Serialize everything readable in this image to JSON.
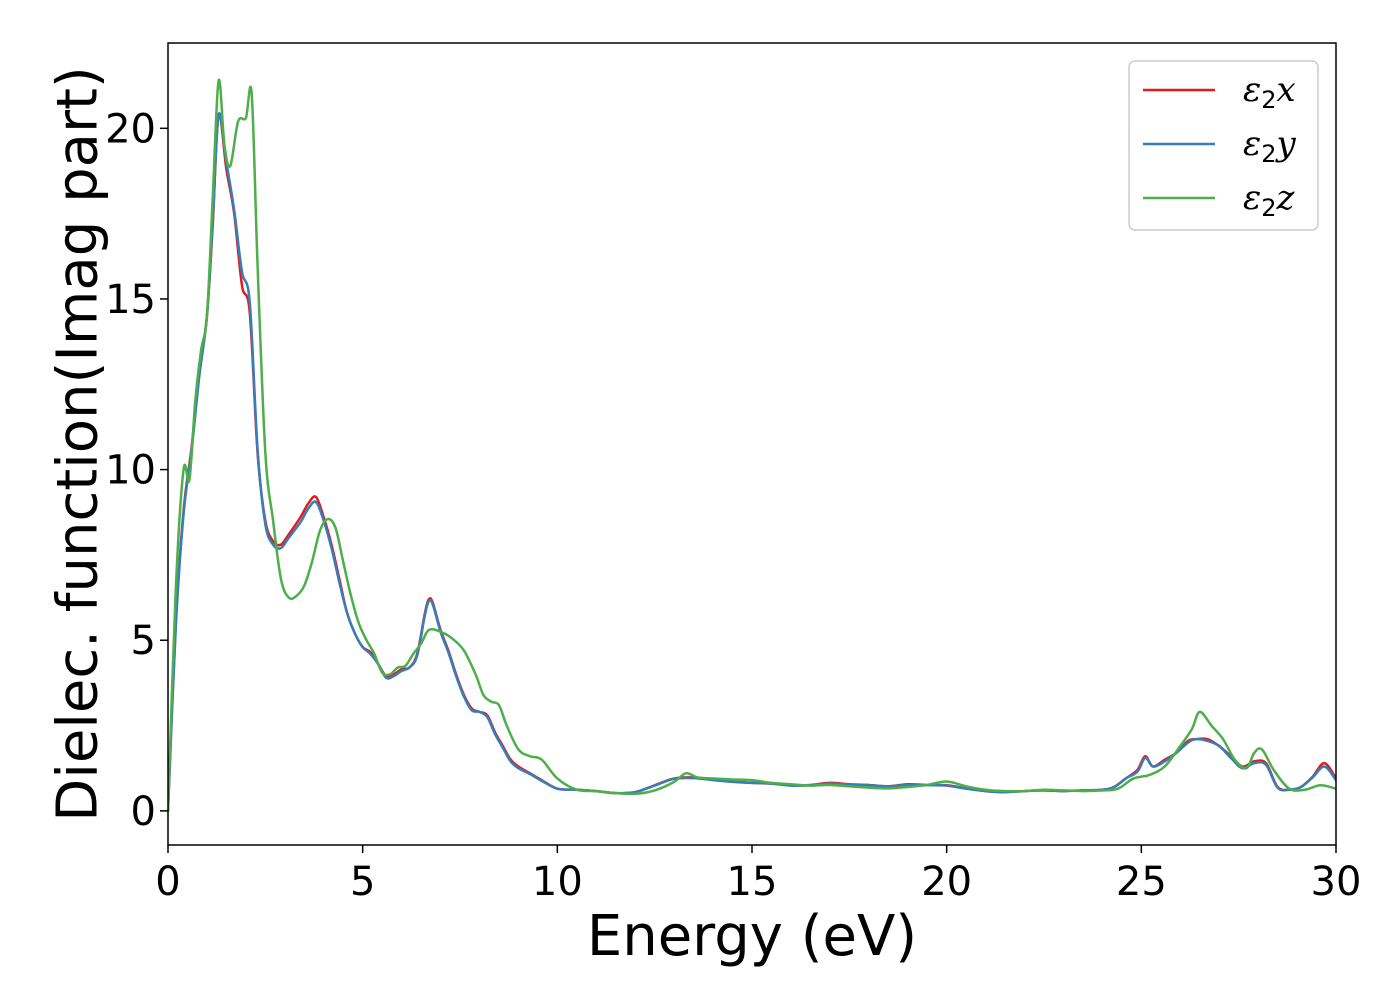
{
  "chart_data": {
    "type": "line",
    "title": "",
    "xlabel": "Energy (eV)",
    "ylabel": "Dielec. function(Imag part)",
    "xlim": [
      0,
      30
    ],
    "ylim": [
      -1,
      22.5
    ],
    "xticks": [
      0,
      5,
      10,
      15,
      20,
      25,
      30
    ],
    "yticks": [
      0,
      5,
      10,
      15,
      20
    ],
    "grid": false,
    "legend_position": "top-right",
    "series": [
      {
        "name": "ε2x",
        "legend_base": "ε",
        "legend_sub": "2",
        "legend_suffix": "x",
        "color": "#e41a1c",
        "x": [
          0,
          0.2,
          0.4,
          0.6,
          0.8,
          1.0,
          1.15,
          1.3,
          1.5,
          1.7,
          1.9,
          2.1,
          2.3,
          2.5,
          2.7,
          2.9,
          3.1,
          3.4,
          3.6,
          3.8,
          4.0,
          4.2,
          4.4,
          4.6,
          4.8,
          5.0,
          5.2,
          5.4,
          5.6,
          5.8,
          6.0,
          6.2,
          6.4,
          6.6,
          6.7,
          6.8,
          7.0,
          7.2,
          7.4,
          7.6,
          7.8,
          8.0,
          8.2,
          8.4,
          8.6,
          8.8,
          9.0,
          9.3,
          9.6,
          10.0,
          10.5,
          11.0,
          11.5,
          12.0,
          12.5,
          13.0,
          13.5,
          14.0,
          14.5,
          15.0,
          15.5,
          16.0,
          16.5,
          17.0,
          17.5,
          18.0,
          18.5,
          19.0,
          19.5,
          20.0,
          20.5,
          21.0,
          21.5,
          22.0,
          22.5,
          23.0,
          23.5,
          24.0,
          24.3,
          24.6,
          24.9,
          25.1,
          25.3,
          25.6,
          25.9,
          26.2,
          26.4,
          26.7,
          27.0,
          27.3,
          27.6,
          27.9,
          28.2,
          28.5,
          28.8,
          29.1,
          29.4,
          29.7,
          30.0
        ],
        "y": [
          0,
          5.5,
          8.8,
          10.6,
          12.8,
          14.5,
          17.2,
          20.4,
          18.8,
          17.5,
          15.4,
          14.6,
          10.5,
          8.5,
          7.9,
          7.8,
          8.1,
          8.6,
          9.0,
          9.2,
          8.6,
          7.8,
          6.8,
          5.8,
          5.2,
          4.8,
          4.65,
          4.3,
          3.95,
          4.0,
          4.15,
          4.2,
          4.6,
          5.8,
          6.2,
          6.1,
          5.3,
          4.7,
          4.0,
          3.4,
          3.0,
          2.9,
          2.8,
          2.3,
          1.9,
          1.5,
          1.3,
          1.1,
          0.9,
          0.65,
          0.62,
          0.58,
          0.52,
          0.55,
          0.75,
          0.95,
          0.98,
          0.92,
          0.86,
          0.82,
          0.8,
          0.75,
          0.76,
          0.82,
          0.78,
          0.76,
          0.72,
          0.78,
          0.76,
          0.75,
          0.66,
          0.58,
          0.55,
          0.58,
          0.6,
          0.58,
          0.6,
          0.62,
          0.7,
          0.95,
          1.2,
          1.6,
          1.3,
          1.5,
          1.7,
          2.05,
          2.1,
          2.1,
          1.9,
          1.6,
          1.3,
          1.45,
          1.4,
          0.7,
          0.62,
          0.7,
          1.0,
          1.4,
          0.95
        ]
      },
      {
        "name": "ε2y",
        "legend_base": "ε",
        "legend_sub": "2",
        "legend_suffix": "y",
        "color": "#377eb8",
        "x": [
          0,
          0.2,
          0.4,
          0.6,
          0.8,
          1.0,
          1.15,
          1.3,
          1.5,
          1.7,
          1.9,
          2.1,
          2.3,
          2.5,
          2.7,
          2.9,
          3.1,
          3.4,
          3.6,
          3.8,
          4.0,
          4.2,
          4.4,
          4.6,
          4.8,
          5.0,
          5.2,
          5.4,
          5.6,
          5.8,
          6.0,
          6.2,
          6.4,
          6.6,
          6.7,
          6.8,
          7.0,
          7.2,
          7.4,
          7.6,
          7.8,
          8.0,
          8.2,
          8.4,
          8.6,
          8.8,
          9.0,
          9.3,
          9.6,
          10.0,
          10.5,
          11.0,
          11.5,
          12.0,
          12.5,
          13.0,
          13.5,
          14.0,
          14.5,
          15.0,
          15.5,
          16.0,
          16.5,
          17.0,
          17.5,
          18.0,
          18.5,
          19.0,
          19.5,
          20.0,
          20.5,
          21.0,
          21.5,
          22.0,
          22.5,
          23.0,
          23.5,
          24.0,
          24.3,
          24.6,
          24.9,
          25.1,
          25.3,
          25.6,
          25.9,
          26.2,
          26.4,
          26.7,
          27.0,
          27.3,
          27.6,
          27.9,
          28.2,
          28.5,
          28.8,
          29.1,
          29.4,
          29.7,
          30.0
        ],
        "y": [
          0,
          5.4,
          8.7,
          10.5,
          12.7,
          14.5,
          17.3,
          20.4,
          19.0,
          17.6,
          15.8,
          14.9,
          10.6,
          8.4,
          7.8,
          7.7,
          8.0,
          8.45,
          8.85,
          9.05,
          8.5,
          7.7,
          6.7,
          5.8,
          5.2,
          4.8,
          4.6,
          4.3,
          3.9,
          3.95,
          4.1,
          4.2,
          4.55,
          5.75,
          6.15,
          6.05,
          5.25,
          4.65,
          3.95,
          3.35,
          2.95,
          2.9,
          2.75,
          2.25,
          1.85,
          1.45,
          1.25,
          1.08,
          0.88,
          0.65,
          0.62,
          0.58,
          0.52,
          0.55,
          0.74,
          0.94,
          0.96,
          0.9,
          0.85,
          0.82,
          0.8,
          0.74,
          0.75,
          0.8,
          0.77,
          0.75,
          0.72,
          0.76,
          0.75,
          0.74,
          0.65,
          0.58,
          0.55,
          0.58,
          0.6,
          0.58,
          0.6,
          0.62,
          0.7,
          0.95,
          1.15,
          1.55,
          1.3,
          1.45,
          1.7,
          2.0,
          2.1,
          2.05,
          1.9,
          1.55,
          1.25,
          1.4,
          1.35,
          0.68,
          0.62,
          0.7,
          0.98,
          1.3,
          0.9
        ]
      },
      {
        "name": "ε2z",
        "legend_base": "ε",
        "legend_sub": "2",
        "legend_suffix": "z",
        "color": "#4daf4a",
        "x": [
          0,
          0.2,
          0.4,
          0.55,
          0.7,
          0.85,
          1.0,
          1.15,
          1.3,
          1.45,
          1.6,
          1.8,
          2.0,
          2.15,
          2.3,
          2.5,
          2.7,
          2.9,
          3.1,
          3.3,
          3.5,
          3.7,
          3.9,
          4.1,
          4.3,
          4.5,
          4.7,
          4.9,
          5.1,
          5.3,
          5.5,
          5.7,
          5.9,
          6.1,
          6.3,
          6.5,
          6.7,
          7.0,
          7.3,
          7.6,
          7.9,
          8.1,
          8.3,
          8.5,
          8.7,
          9.0,
          9.3,
          9.6,
          10.0,
          10.5,
          11.0,
          11.5,
          12.0,
          12.5,
          13.0,
          13.3,
          13.6,
          14.0,
          14.5,
          15.0,
          15.5,
          16.0,
          16.5,
          17.0,
          17.5,
          18.0,
          18.5,
          19.0,
          19.5,
          20.0,
          20.5,
          21.0,
          21.5,
          22.0,
          22.5,
          23.0,
          23.5,
          24.0,
          24.4,
          24.8,
          25.2,
          25.6,
          26.0,
          26.3,
          26.5,
          26.8,
          27.1,
          27.4,
          27.7,
          27.9,
          28.1,
          28.4,
          28.8,
          29.2,
          29.6,
          30.0
        ],
        "y": [
          0,
          6.5,
          10.0,
          9.7,
          12.0,
          13.5,
          14.5,
          18.0,
          21.4,
          19.5,
          18.9,
          20.2,
          20.3,
          21.0,
          16.0,
          10.5,
          8.5,
          6.8,
          6.25,
          6.3,
          6.6,
          7.3,
          8.2,
          8.55,
          8.3,
          7.3,
          6.3,
          5.5,
          5.0,
          4.6,
          4.05,
          4.0,
          4.2,
          4.25,
          4.6,
          4.9,
          5.3,
          5.25,
          5.05,
          4.7,
          4.0,
          3.4,
          3.2,
          3.1,
          2.5,
          1.8,
          1.6,
          1.5,
          0.95,
          0.62,
          0.58,
          0.52,
          0.5,
          0.6,
          0.85,
          1.1,
          0.98,
          0.95,
          0.92,
          0.9,
          0.82,
          0.78,
          0.74,
          0.76,
          0.72,
          0.68,
          0.66,
          0.7,
          0.76,
          0.86,
          0.72,
          0.62,
          0.58,
          0.58,
          0.62,
          0.6,
          0.58,
          0.6,
          0.65,
          0.95,
          1.05,
          1.3,
          1.9,
          2.4,
          2.9,
          2.5,
          2.1,
          1.5,
          1.25,
          1.7,
          1.8,
          1.2,
          0.65,
          0.62,
          0.75,
          0.65
        ]
      }
    ]
  }
}
